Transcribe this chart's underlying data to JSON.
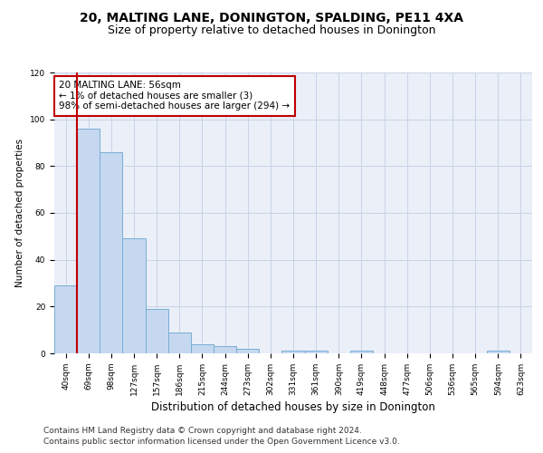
{
  "title1": "20, MALTING LANE, DONINGTON, SPALDING, PE11 4XA",
  "title2": "Size of property relative to detached houses in Donington",
  "xlabel": "Distribution of detached houses by size in Donington",
  "ylabel": "Number of detached properties",
  "categories": [
    "40sqm",
    "69sqm",
    "98sqm",
    "127sqm",
    "157sqm",
    "186sqm",
    "215sqm",
    "244sqm",
    "273sqm",
    "302sqm",
    "331sqm",
    "361sqm",
    "390sqm",
    "419sqm",
    "448sqm",
    "477sqm",
    "506sqm",
    "536sqm",
    "565sqm",
    "594sqm",
    "623sqm"
  ],
  "values": [
    29,
    96,
    86,
    49,
    19,
    9,
    4,
    3,
    2,
    0,
    1,
    1,
    0,
    1,
    0,
    0,
    0,
    0,
    0,
    1,
    0
  ],
  "bar_color": "#c5d8f0",
  "bar_edge_color": "#7aadd4",
  "vline_color": "#c00000",
  "vline_x": 0.5,
  "annotation_text": "20 MALTING LANE: 56sqm\n← 1% of detached houses are smaller (3)\n98% of semi-detached houses are larger (294) →",
  "annotation_box_color": "white",
  "annotation_box_edge_color": "#c00000",
  "ylim": [
    0,
    120
  ],
  "yticks": [
    0,
    20,
    40,
    60,
    80,
    100,
    120
  ],
  "grid_color": "#c8d4e8",
  "bg_color": "#eaeff8",
  "footer1": "Contains HM Land Registry data © Crown copyright and database right 2024.",
  "footer2": "Contains public sector information licensed under the Open Government Licence v3.0.",
  "title1_fontsize": 10,
  "title2_fontsize": 9,
  "xlabel_fontsize": 8.5,
  "ylabel_fontsize": 7.5,
  "tick_fontsize": 6.5,
  "annotation_fontsize": 7.5,
  "footer_fontsize": 6.5
}
